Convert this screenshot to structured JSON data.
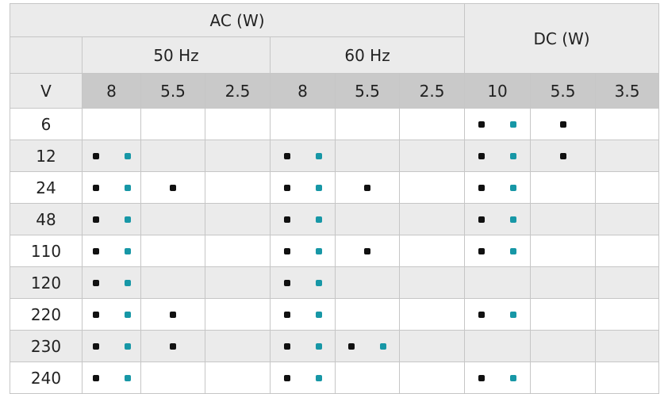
{
  "header": {
    "ac": "AC (W)",
    "dc": "DC (W)",
    "hz": [
      "50 Hz",
      "60 Hz"
    ],
    "v": "V",
    "watts": [
      "8",
      "5.5",
      "2.5",
      "8",
      "5.5",
      "2.5",
      "10",
      "5.5",
      "3.5"
    ]
  },
  "table": {
    "rows": [
      {
        "v": "6",
        "cells": [
          [],
          [],
          [],
          [],
          [],
          [],
          [
            "#111111",
            "#1797a6"
          ],
          [
            "#111111"
          ],
          []
        ]
      },
      {
        "v": "12",
        "cells": [
          [
            "#111111",
            "#1797a6"
          ],
          [],
          [],
          [
            "#111111",
            "#1797a6"
          ],
          [],
          [],
          [
            "#111111",
            "#1797a6"
          ],
          [
            "#111111"
          ],
          []
        ]
      },
      {
        "v": "24",
        "cells": [
          [
            "#111111",
            "#1797a6"
          ],
          [
            "#111111"
          ],
          [],
          [
            "#111111",
            "#1797a6"
          ],
          [
            "#111111"
          ],
          [],
          [
            "#111111",
            "#1797a6"
          ],
          [],
          []
        ]
      },
      {
        "v": "48",
        "cells": [
          [
            "#111111",
            "#1797a6"
          ],
          [],
          [],
          [
            "#111111",
            "#1797a6"
          ],
          [],
          [],
          [
            "#111111",
            "#1797a6"
          ],
          [],
          []
        ]
      },
      {
        "v": "110",
        "cells": [
          [
            "#111111",
            "#1797a6"
          ],
          [],
          [],
          [
            "#111111",
            "#1797a6"
          ],
          [
            "#111111"
          ],
          [],
          [
            "#111111",
            "#1797a6"
          ],
          [],
          []
        ]
      },
      {
        "v": "120",
        "cells": [
          [
            "#111111",
            "#1797a6"
          ],
          [],
          [],
          [
            "#111111",
            "#1797a6"
          ],
          [],
          [],
          [],
          [],
          []
        ]
      },
      {
        "v": "220",
        "cells": [
          [
            "#111111",
            "#1797a6"
          ],
          [
            "#111111"
          ],
          [],
          [
            "#111111",
            "#1797a6"
          ],
          [],
          [],
          [
            "#111111",
            "#1797a6"
          ],
          [],
          []
        ]
      },
      {
        "v": "230",
        "cells": [
          [
            "#111111",
            "#1797a6"
          ],
          [
            "#111111"
          ],
          [],
          [
            "#111111",
            "#1797a6"
          ],
          [
            "#111111",
            "#1797a6"
          ],
          [],
          [],
          [],
          []
        ]
      },
      {
        "v": "240",
        "cells": [
          [
            "#111111",
            "#1797a6"
          ],
          [],
          [],
          [
            "#111111",
            "#1797a6"
          ],
          [],
          [],
          [
            "#111111",
            "#1797a6"
          ],
          [],
          []
        ]
      }
    ]
  }
}
